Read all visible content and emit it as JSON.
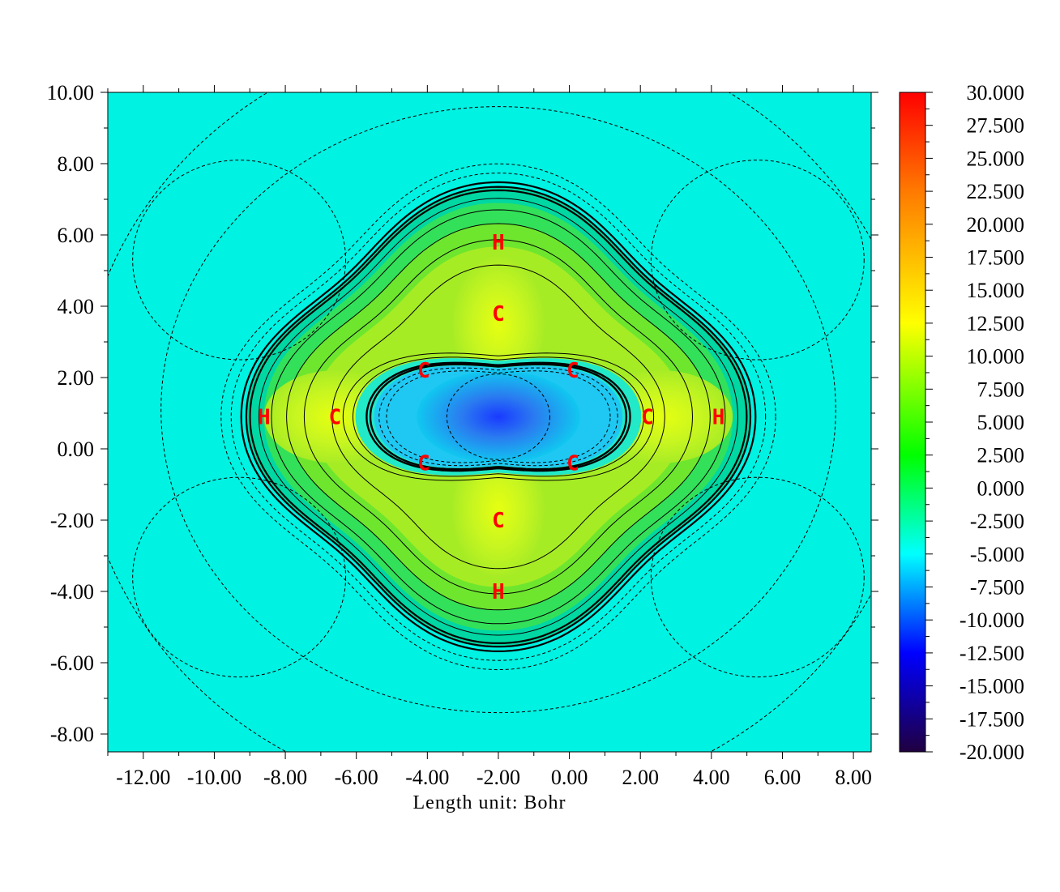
{
  "chart_data": {
    "type": "heatmap",
    "title": "",
    "xlabel": "Length unit: Bohr",
    "ylabel": "",
    "xlim": [
      -13.0,
      8.5
    ],
    "ylim": [
      -8.5,
      10.0
    ],
    "x_ticks": [
      -12,
      -10,
      -8,
      -6,
      -4,
      -2,
      0,
      2,
      4,
      6,
      8
    ],
    "x_tick_labels": [
      "-12.00",
      "-10.00",
      "-8.00",
      "-6.00",
      "-4.00",
      "-2.00",
      "0.00",
      "2.00",
      "4.00",
      "6.00",
      "8.00"
    ],
    "y_ticks": [
      10,
      8,
      6,
      4,
      2,
      0,
      -2,
      -4,
      -6,
      -8
    ],
    "y_tick_labels": [
      "10.00",
      "8.00",
      "6.00",
      "4.00",
      "2.00",
      "0.00",
      "-2.00",
      "-4.00",
      "-6.00",
      "-8.00"
    ],
    "colorbar": {
      "range": [
        -20,
        30
      ],
      "ticks": [
        30,
        27.5,
        25,
        22.5,
        20,
        17.5,
        15,
        12.5,
        10,
        7.5,
        5,
        2.5,
        0,
        -2.5,
        -5,
        -7.5,
        -10,
        -12.5,
        -15,
        -17.5,
        -20
      ],
      "tick_labels": [
        "30.000",
        "27.500",
        "25.000",
        "22.500",
        "20.000",
        "17.500",
        "15.000",
        "12.500",
        "10.000",
        "7.500",
        "5.000",
        "2.500",
        "0.000",
        "-2.500",
        "-5.000",
        "-7.500",
        "-10.000",
        "-12.500",
        "-15.000",
        "-17.500",
        "-20.000"
      ],
      "colors_top_to_bottom": [
        "#ff0000",
        "#ff7a00",
        "#ffff00",
        "#00ff00",
        "#00ffff",
        "#0000ff",
        "#200040"
      ]
    },
    "background_value": 0.0,
    "atoms": [
      {
        "label": "H",
        "x": -2.0,
        "y": 5.8
      },
      {
        "label": "C",
        "x": -2.0,
        "y": 3.8
      },
      {
        "label": "C",
        "x": -4.1,
        "y": 2.2
      },
      {
        "label": "C",
        "x": 0.1,
        "y": 2.2
      },
      {
        "label": "H",
        "x": -8.6,
        "y": 0.9
      },
      {
        "label": "C",
        "x": -6.6,
        "y": 0.9
      },
      {
        "label": "C",
        "x": 2.2,
        "y": 0.9
      },
      {
        "label": "H",
        "x": 4.2,
        "y": 0.9
      },
      {
        "label": "C",
        "x": -4.1,
        "y": -0.4
      },
      {
        "label": "C",
        "x": 0.1,
        "y": -0.4
      },
      {
        "label": "C",
        "x": -2.0,
        "y": -2.0
      },
      {
        "label": "H",
        "x": -2.0,
        "y": -4.0
      }
    ],
    "center": {
      "x": -2.0,
      "y": 0.9,
      "value": -11.0
    },
    "grid": false,
    "contour_lines": {
      "solid": "positive values",
      "dashed": "negative values"
    }
  }
}
